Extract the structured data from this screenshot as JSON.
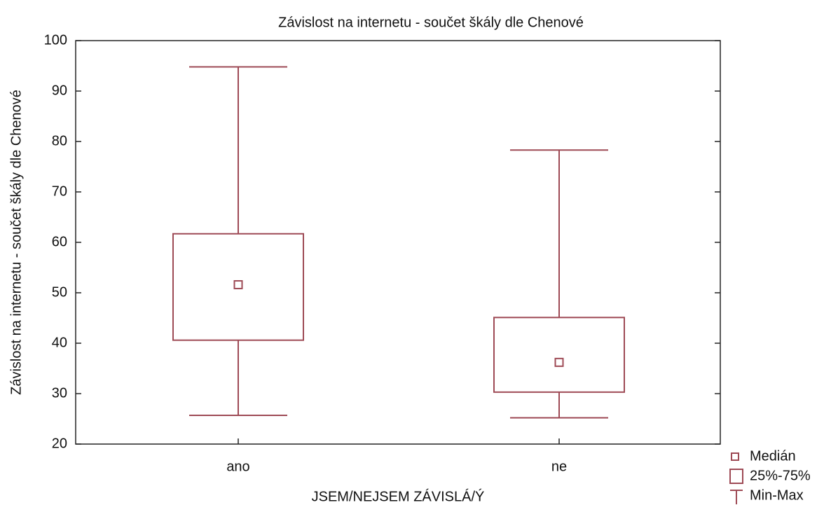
{
  "chart_data": {
    "type": "box",
    "title": "Závislost na internetu - součet škály dle Chenové",
    "y_label": "Závislost na internetu - součet škály dle Chenové",
    "x_label": "JSEM/NEJSEM ZÁVISLÁ/Ý",
    "categories": [
      "ano",
      "ne"
    ],
    "min": [
      25.7,
      25.2
    ],
    "q1": [
      40.6,
      30.3
    ],
    "median": [
      51.6,
      36.2
    ],
    "q3": [
      61.7,
      45.1
    ],
    "max": [
      94.8,
      78.3
    ],
    "color": "#9e4a55",
    "ylim": [
      20,
      100
    ],
    "yticks": [
      20,
      30,
      40,
      50,
      60,
      70,
      80,
      90,
      100
    ],
    "legend": [
      "Medián",
      "25%-75%",
      "Min-Max"
    ]
  }
}
